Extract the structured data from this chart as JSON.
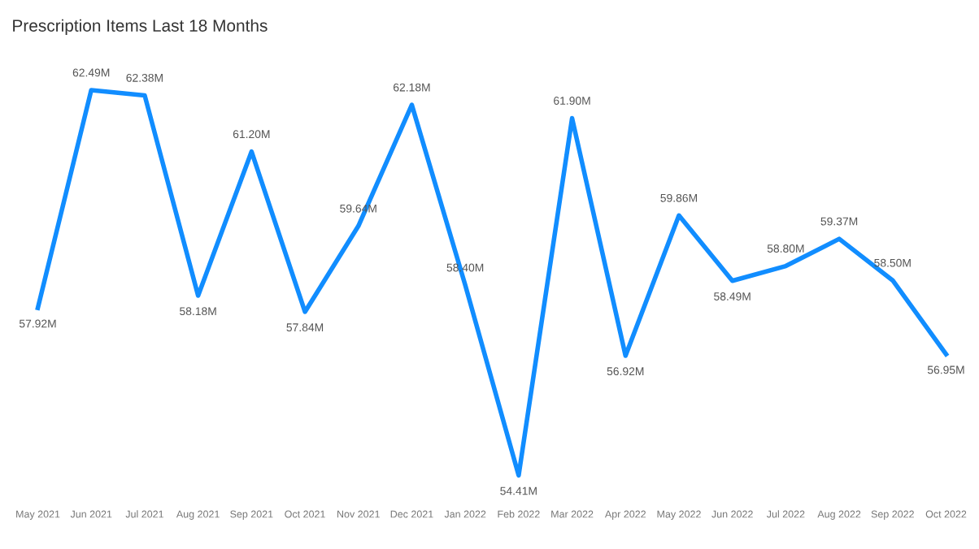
{
  "chart_data": {
    "type": "line",
    "title": "Prescription Items Last 18 Months",
    "categories": [
      "May 2021",
      "Jun 2021",
      "Jul 2021",
      "Aug 2021",
      "Sep 2021",
      "Oct 2021",
      "Nov 2021",
      "Dec 2021",
      "Jan 2022",
      "Feb 2022",
      "Mar 2022",
      "Apr 2022",
      "May 2022",
      "Jun 2022",
      "Jul 2022",
      "Aug 2022",
      "Sep 2022",
      "Oct 2022"
    ],
    "series": [
      {
        "color": "#118dff",
        "values": [
          57.92,
          62.49,
          62.38,
          58.18,
          61.2,
          57.84,
          59.64,
          62.18,
          58.4,
          54.41,
          61.9,
          56.92,
          59.86,
          58.49,
          58.8,
          59.37,
          58.5,
          56.95
        ],
        "value_labels": [
          "57.92M",
          "62.49M",
          "62.38M",
          "58.18M",
          "61.20M",
          "57.84M",
          "59.64M",
          "62.18M",
          "58.40M",
          "54.41M",
          "61.90M",
          "56.92M",
          "59.86M",
          "58.49M",
          "58.80M",
          "59.37M",
          "58.50M",
          "56.95M"
        ]
      }
    ],
    "tick_labels": "x",
    "grid": false,
    "marker": "none",
    "line_style": "solid"
  }
}
